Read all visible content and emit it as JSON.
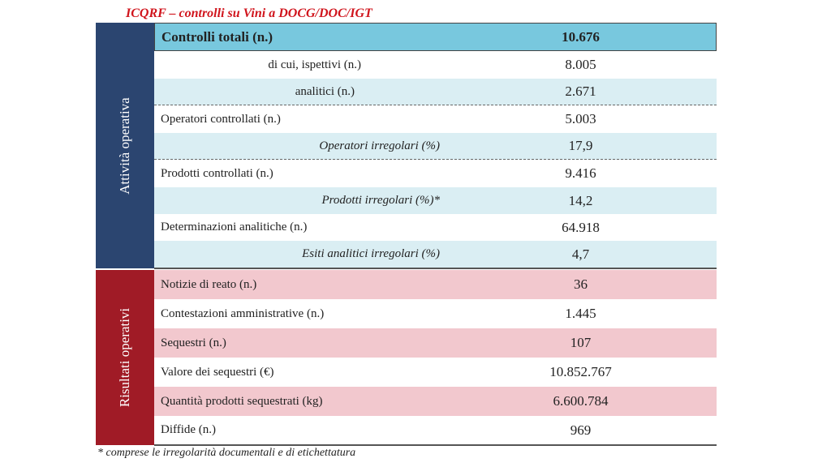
{
  "title": "ICQRF – controlli su Vini a DOCG/DOC/IGT",
  "sections": [
    "Attività operativa",
    "Risultati operativi"
  ],
  "table": {
    "rows": [
      [
        "Controlli totali (n.)",
        "10.676"
      ],
      [
        "di cui, ispettivi (n.)",
        "8.005"
      ],
      [
        "analitici (n.)",
        "2.671"
      ],
      [
        "Operatori controllati (n.)",
        "5.003"
      ],
      [
        "Operatori irregolari (%)",
        "17,9"
      ],
      [
        "Prodotti controllati (n.)",
        "9.416"
      ],
      [
        "Prodotti irregolari (%)*",
        "14,2"
      ],
      [
        "Determinazioni analitiche (n.)",
        "64.918"
      ],
      [
        "Esiti analitici irregolari (%)",
        "4,7"
      ],
      [
        "Notizie di reato (n.)",
        "36"
      ],
      [
        "Contestazioni amministrative (n.)",
        "1.445"
      ],
      [
        "Sequestri (n.)",
        "107"
      ],
      [
        "Valore dei sequestri (€)",
        "10.852.767"
      ],
      [
        "Quantità prodotti sequestrati (kg)",
        "6.600.784"
      ],
      [
        "Diffide (n.)",
        "969"
      ]
    ]
  },
  "footnote": "* comprese le irregolarità documentali e di etichettatura"
}
